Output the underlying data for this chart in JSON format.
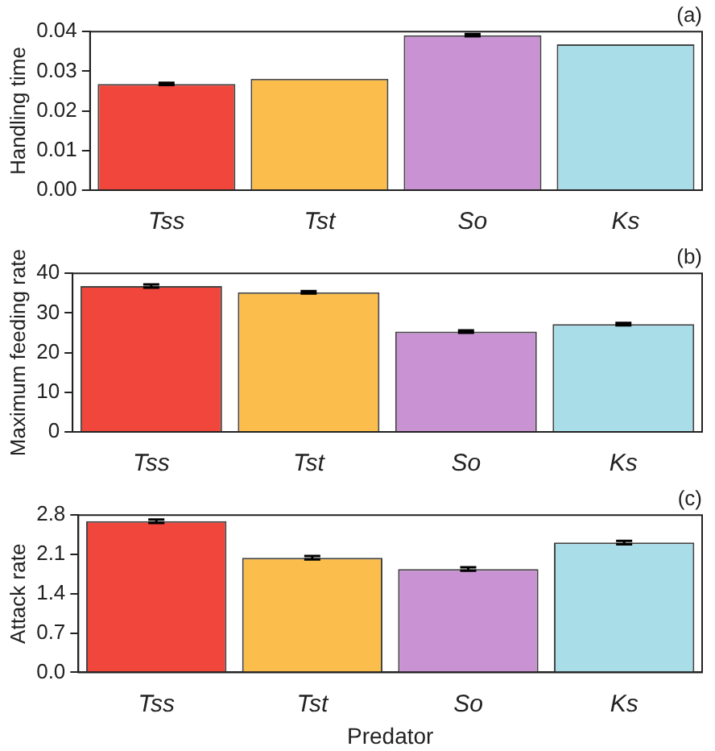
{
  "chart_data": [
    {
      "type": "bar",
      "title": "(a)",
      "ylabel": "Handling time",
      "categories": [
        "Tss",
        "Tst",
        "So",
        "Ks"
      ],
      "values": [
        0.0268,
        0.0281,
        0.0391,
        0.0368
      ],
      "errors": [
        0.0003,
        null,
        0.0003,
        null
      ],
      "colors": [
        "#f0463c",
        "#fbbd4b",
        "#c993d3",
        "#a9dde8"
      ],
      "ylim": [
        0,
        0.04
      ],
      "yticks": [
        {
          "value": 0,
          "label": "0.00"
        },
        {
          "value": 0.01,
          "label": "0.01"
        },
        {
          "value": 0.02,
          "label": "0.02"
        },
        {
          "value": 0.03,
          "label": "0.03"
        },
        {
          "value": 0.04,
          "label": "0.04"
        }
      ],
      "grid": false
    },
    {
      "type": "bar",
      "title": "(b)",
      "ylabel": "Maximum feeding rate",
      "categories": [
        "Tss",
        "Tst",
        "So",
        "Ks"
      ],
      "values": [
        36.8,
        35.2,
        25.3,
        27.2
      ],
      "errors": [
        0.4,
        0.3,
        0.3,
        0.3
      ],
      "colors": [
        "#f0463c",
        "#fbbd4b",
        "#c993d3",
        "#a9dde8"
      ],
      "ylim": [
        0,
        40
      ],
      "yticks": [
        0,
        10,
        20,
        30,
        40
      ],
      "grid": false
    },
    {
      "type": "bar",
      "title": "(c)",
      "ylabel": "Attack rate",
      "xlabel": "Predator",
      "categories": [
        "Tss",
        "Tst",
        "So",
        "Ks"
      ],
      "values": [
        2.69,
        2.04,
        1.84,
        2.31
      ],
      "errors": [
        0.03,
        0.03,
        0.03,
        0.03
      ],
      "colors": [
        "#f0463c",
        "#fbbd4b",
        "#c993d3",
        "#a9dde8"
      ],
      "ylim": [
        0,
        2.8
      ],
      "yticks": [
        {
          "value": 0,
          "label": "0.0"
        },
        {
          "value": 0.7,
          "label": "0.7"
        },
        {
          "value": 1.4,
          "label": "1.4"
        },
        {
          "value": 2.1,
          "label": "2.1"
        },
        {
          "value": 2.8,
          "label": "2.8"
        }
      ],
      "grid": false
    }
  ]
}
